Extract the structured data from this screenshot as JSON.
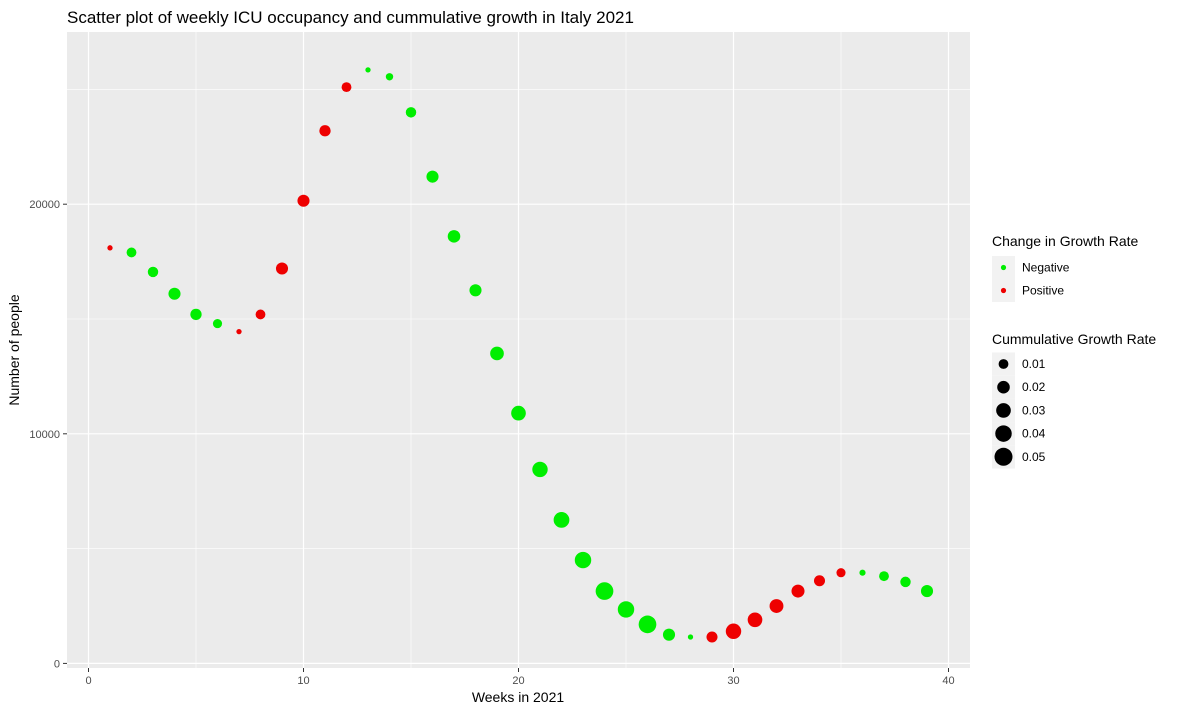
{
  "chart_data": {
    "type": "scatter",
    "title": "Scatter plot of weekly ICU occupancy and cummulative growth in Italy 2021",
    "xlabel": "Weeks in 2021",
    "ylabel": "Number of people",
    "xlim": [
      -1,
      41
    ],
    "ylim": [
      -200,
      27500
    ],
    "xticks": [
      0,
      10,
      20,
      30,
      40
    ],
    "yticks": [
      0,
      10000,
      20000
    ],
    "grid": true,
    "panel_color": "#ebebeb",
    "colors": {
      "Negative": "#00ee00",
      "Positive": "#ee0000"
    },
    "legend_color": {
      "title": "Change in Growth Rate",
      "entries": [
        "Negative",
        "Positive"
      ]
    },
    "legend_size": {
      "title": "Cummulative Growth Rate",
      "entries": [
        "0.01",
        "0.02",
        "0.03",
        "0.04",
        "0.05"
      ],
      "values": [
        0.01,
        0.02,
        0.03,
        0.04,
        0.05
      ]
    },
    "points": [
      {
        "x": 1,
        "y": 18100,
        "change": "Positive",
        "rate": 0.001
      },
      {
        "x": 2,
        "y": 17900,
        "change": "Negative",
        "rate": 0.01
      },
      {
        "x": 3,
        "y": 17050,
        "change": "Negative",
        "rate": 0.012
      },
      {
        "x": 4,
        "y": 16100,
        "change": "Negative",
        "rate": 0.018
      },
      {
        "x": 5,
        "y": 15200,
        "change": "Negative",
        "rate": 0.015
      },
      {
        "x": 6,
        "y": 14800,
        "change": "Negative",
        "rate": 0.008
      },
      {
        "x": 7,
        "y": 14450,
        "change": "Positive",
        "rate": 0.001
      },
      {
        "x": 8,
        "y": 15200,
        "change": "Positive",
        "rate": 0.01
      },
      {
        "x": 9,
        "y": 17200,
        "change": "Positive",
        "rate": 0.018
      },
      {
        "x": 10,
        "y": 20150,
        "change": "Positive",
        "rate": 0.018
      },
      {
        "x": 11,
        "y": 23200,
        "change": "Positive",
        "rate": 0.015
      },
      {
        "x": 12,
        "y": 25100,
        "change": "Positive",
        "rate": 0.01
      },
      {
        "x": 13,
        "y": 25850,
        "change": "Negative",
        "rate": 0.001
      },
      {
        "x": 14,
        "y": 25550,
        "change": "Negative",
        "rate": 0.004
      },
      {
        "x": 15,
        "y": 24000,
        "change": "Negative",
        "rate": 0.012
      },
      {
        "x": 16,
        "y": 21200,
        "change": "Negative",
        "rate": 0.018
      },
      {
        "x": 17,
        "y": 18600,
        "change": "Negative",
        "rate": 0.02
      },
      {
        "x": 18,
        "y": 16250,
        "change": "Negative",
        "rate": 0.018
      },
      {
        "x": 19,
        "y": 13500,
        "change": "Negative",
        "rate": 0.025
      },
      {
        "x": 20,
        "y": 10900,
        "change": "Negative",
        "rate": 0.03
      },
      {
        "x": 21,
        "y": 8450,
        "change": "Negative",
        "rate": 0.034
      },
      {
        "x": 22,
        "y": 6250,
        "change": "Negative",
        "rate": 0.036
      },
      {
        "x": 23,
        "y": 4500,
        "change": "Negative",
        "rate": 0.04
      },
      {
        "x": 24,
        "y": 3150,
        "change": "Negative",
        "rate": 0.048
      },
      {
        "x": 25,
        "y": 2350,
        "change": "Negative",
        "rate": 0.04
      },
      {
        "x": 26,
        "y": 1700,
        "change": "Negative",
        "rate": 0.048
      },
      {
        "x": 27,
        "y": 1250,
        "change": "Negative",
        "rate": 0.018
      },
      {
        "x": 28,
        "y": 1150,
        "change": "Negative",
        "rate": 0.001
      },
      {
        "x": 29,
        "y": 1150,
        "change": "Positive",
        "rate": 0.014
      },
      {
        "x": 30,
        "y": 1400,
        "change": "Positive",
        "rate": 0.034
      },
      {
        "x": 31,
        "y": 1900,
        "change": "Positive",
        "rate": 0.03
      },
      {
        "x": 32,
        "y": 2500,
        "change": "Positive",
        "rate": 0.026
      },
      {
        "x": 33,
        "y": 3150,
        "change": "Positive",
        "rate": 0.022
      },
      {
        "x": 34,
        "y": 3600,
        "change": "Positive",
        "rate": 0.014
      },
      {
        "x": 35,
        "y": 3950,
        "change": "Positive",
        "rate": 0.008
      },
      {
        "x": 36,
        "y": 3950,
        "change": "Negative",
        "rate": 0.002
      },
      {
        "x": 37,
        "y": 3800,
        "change": "Negative",
        "rate": 0.01
      },
      {
        "x": 38,
        "y": 3550,
        "change": "Negative",
        "rate": 0.012
      },
      {
        "x": 39,
        "y": 3150,
        "change": "Negative",
        "rate": 0.018
      }
    ]
  }
}
